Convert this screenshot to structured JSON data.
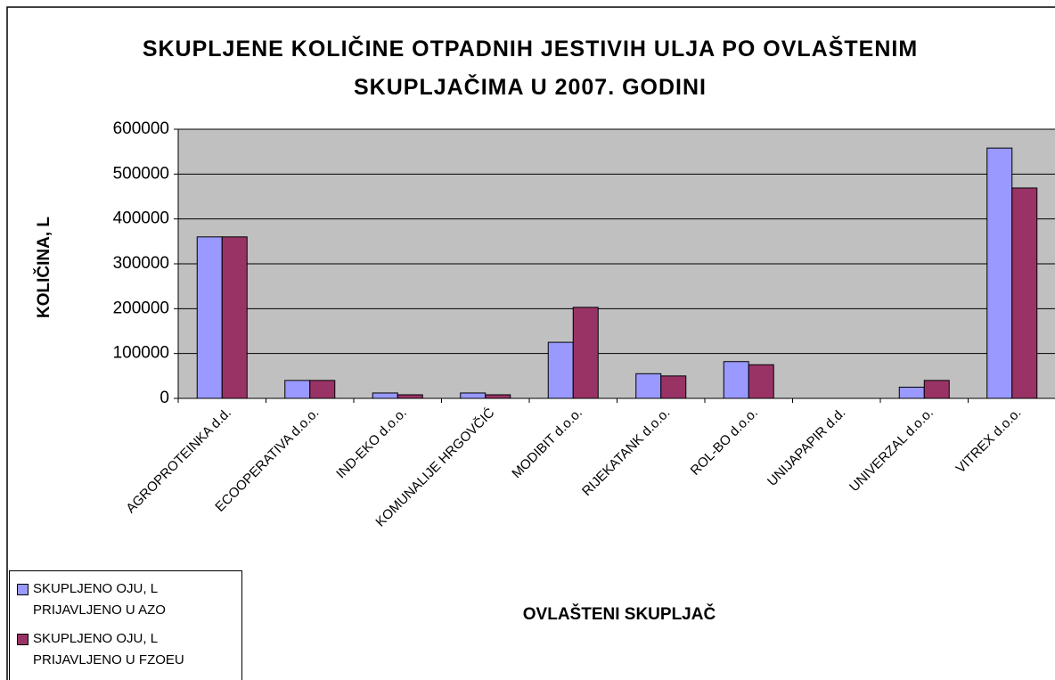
{
  "chart_data": {
    "type": "bar",
    "title": "SKUPLJENE KOLIČINE OTPADNIH JESTIVIH ULJA PO OVLAŠTENIM SKUPLJAČIMA U 2007. GODINI",
    "x_label": "OVLAŠTENI SKUPLJAČ",
    "y_label": "KOLIČINA, L",
    "categories": [
      "AGROPROTEINKA d.d.",
      "ECOOPERATIVA d.o.o.",
      "IND-EKO d.o.o.",
      "KOMUNALIJE HRGOVČIĆ",
      "MODIBIT d.o.o.",
      "RIJEKATANK d.o.o.",
      "ROL-BO d.o.o.",
      "UNIJAPAPIR d.d.",
      "UNIVERZAL d.o.o.",
      "VITREX d.o.o."
    ],
    "series": [
      {
        "name": "SKUPLJENO OJU, L PRIJAVLJENO U AZO",
        "color": "#9999ff",
        "values": [
          360000,
          40000,
          12000,
          12000,
          125000,
          55000,
          82000,
          0,
          25000,
          558000
        ]
      },
      {
        "name": "SKUPLJENO OJU, L PRIJAVLJENO U FZOEU",
        "color": "#993366",
        "values": [
          360000,
          40000,
          8000,
          8000,
          203000,
          50000,
          75000,
          0,
          40000,
          469000
        ]
      }
    ],
    "ylim": [
      0,
      600000
    ],
    "yticks": [
      0,
      100000,
      200000,
      300000,
      400000,
      500000,
      600000
    ],
    "grid": true,
    "legend": "bottom-left"
  }
}
